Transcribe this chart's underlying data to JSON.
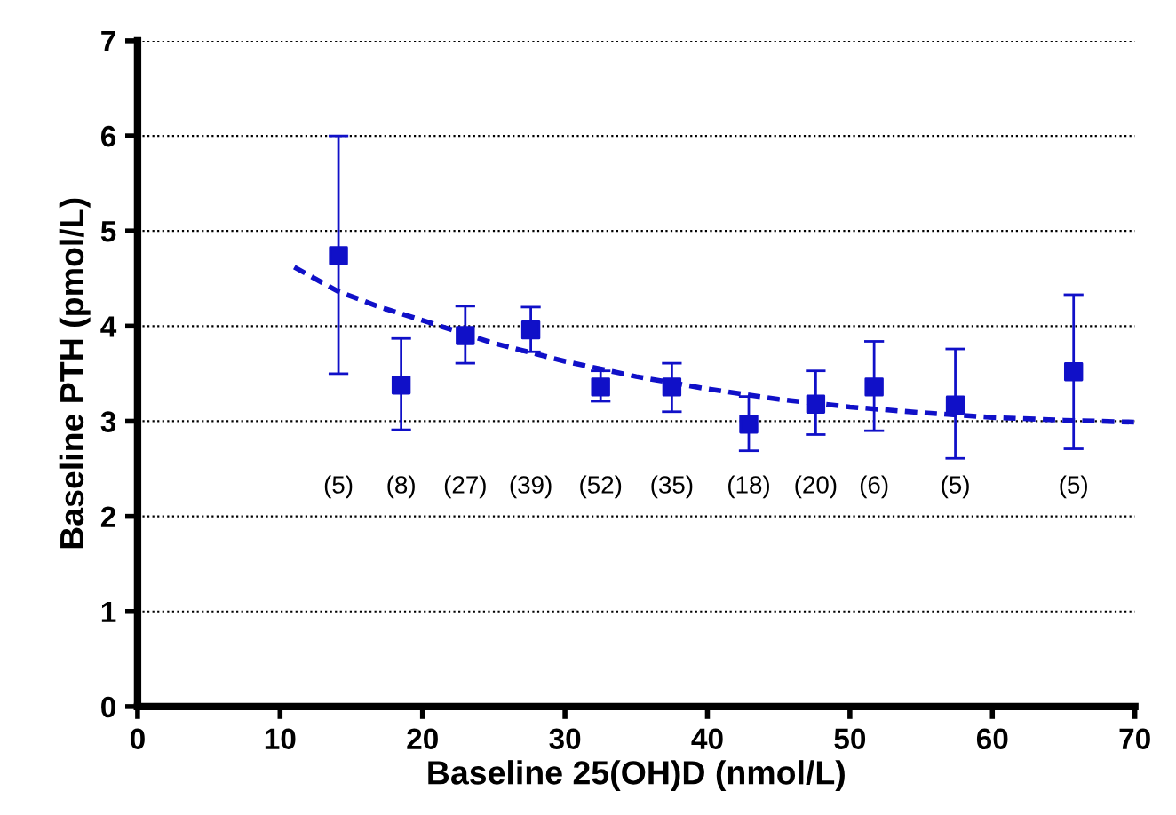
{
  "chart_data": {
    "type": "scatter",
    "xlabel": "Baseline 25(OH)D (nmol/L)",
    "ylabel": "Baseline PTH (pmol/L)",
    "xlim": [
      0,
      70
    ],
    "xticks": [
      0,
      10,
      20,
      30,
      40,
      50,
      60,
      70
    ],
    "ylim": [
      0,
      7
    ],
    "yticks": [
      0,
      1,
      2,
      3,
      4,
      5,
      6,
      7
    ],
    "grid": "y",
    "legend": false,
    "series": [
      {
        "color": "#1010c8",
        "marker": "square",
        "x": [
          14.1,
          18.5,
          23.0,
          27.6,
          32.5,
          37.5,
          42.9,
          47.6,
          51.7,
          57.4,
          65.7
        ],
        "values": [
          4.74,
          3.38,
          3.9,
          3.96,
          3.36,
          3.36,
          2.97,
          3.18,
          3.36,
          3.17,
          3.52
        ],
        "errors": [
          [
            3.5,
            6.0
          ],
          [
            2.91,
            3.87
          ],
          [
            3.61,
            4.21
          ],
          [
            3.73,
            4.2
          ],
          [
            3.21,
            3.53
          ],
          [
            3.1,
            3.61
          ],
          [
            2.69,
            3.26
          ],
          [
            2.86,
            3.53
          ],
          [
            2.9,
            3.84
          ],
          [
            2.61,
            3.76
          ],
          [
            2.71,
            4.33
          ]
        ]
      },
      {
        "type": "line",
        "color": "#1010c8",
        "line_style": "dashed",
        "x": [
          11,
          14,
          17,
          20,
          25,
          30,
          35,
          40,
          45,
          50,
          55,
          60,
          65,
          70
        ],
        "values": [
          4.62,
          4.37,
          4.2,
          4.06,
          3.82,
          3.63,
          3.47,
          3.34,
          3.23,
          3.15,
          3.09,
          3.04,
          3.01,
          2.99
        ]
      }
    ],
    "annotations": [
      "(5)",
      "(8)",
      "(27)",
      "(39)",
      "(52)",
      "(35)",
      "(18)",
      "(20)",
      "(6)",
      "(5)",
      "(5)"
    ]
  }
}
